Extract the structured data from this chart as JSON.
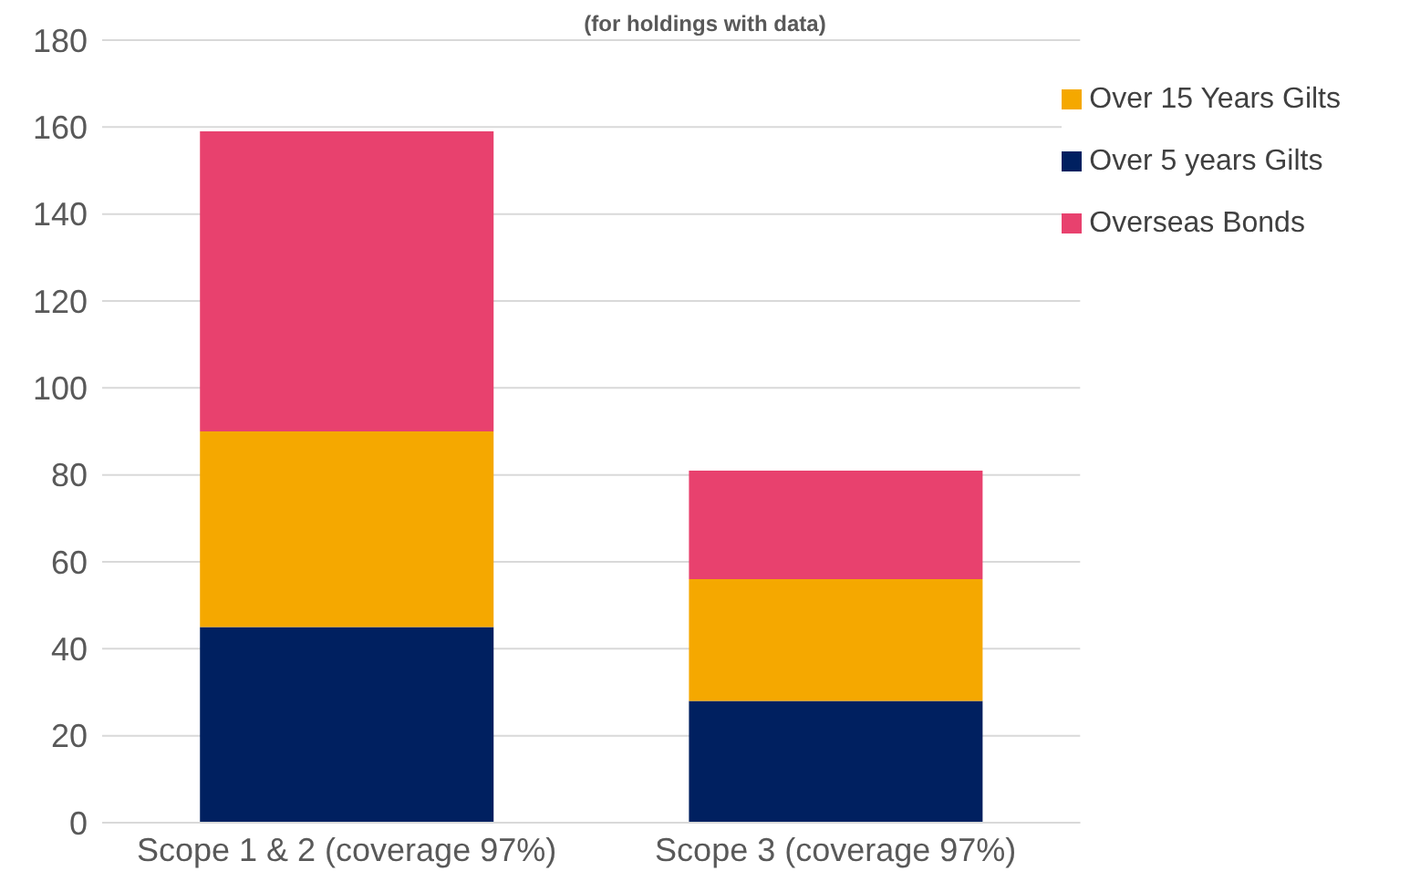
{
  "chart_data": {
    "type": "bar",
    "subtitle": "(for holdings with data)",
    "categories": [
      "Scope 1 & 2 (coverage 97%)",
      "Scope 3 (coverage 97%)"
    ],
    "stacked": true,
    "series": [
      {
        "name": "Over 5 years Gilts",
        "color": "#002060",
        "values": [
          45,
          28
        ]
      },
      {
        "name": "Over 15 Years Gilts",
        "color": "#f5a800",
        "values": [
          45,
          28
        ]
      },
      {
        "name": "Overseas Bonds",
        "color": "#e8416e",
        "values": [
          69,
          25
        ]
      }
    ],
    "ylim": [
      0,
      180
    ],
    "yticks": [
      0,
      20,
      40,
      60,
      80,
      100,
      120,
      140,
      160,
      180
    ],
    "grid": "y",
    "legend": "top right"
  }
}
